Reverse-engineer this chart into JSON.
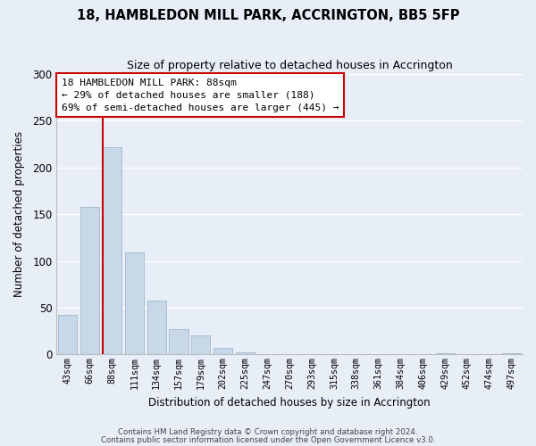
{
  "title": "18, HAMBLEDON MILL PARK, ACCRINGTON, BB5 5FP",
  "subtitle": "Size of property relative to detached houses in Accrington",
  "xlabel": "Distribution of detached houses by size in Accrington",
  "ylabel": "Number of detached properties",
  "bar_labels": [
    "43sqm",
    "66sqm",
    "88sqm",
    "111sqm",
    "134sqm",
    "157sqm",
    "179sqm",
    "202sqm",
    "225sqm",
    "247sqm",
    "270sqm",
    "293sqm",
    "315sqm",
    "338sqm",
    "361sqm",
    "384sqm",
    "406sqm",
    "429sqm",
    "452sqm",
    "474sqm",
    "497sqm"
  ],
  "bar_heights": [
    42,
    158,
    222,
    109,
    58,
    27,
    20,
    7,
    2,
    0,
    0,
    0,
    0,
    0,
    0,
    0,
    0,
    1,
    0,
    0,
    1
  ],
  "bar_color": "#c8d8e8",
  "bar_edge_color": "#a0b8cc",
  "vline_index": 2,
  "vline_color": "#cc0000",
  "ylim": [
    0,
    300
  ],
  "yticks": [
    0,
    50,
    100,
    150,
    200,
    250,
    300
  ],
  "annotation_title": "18 HAMBLEDON MILL PARK: 88sqm",
  "annotation_line1": "← 29% of detached houses are smaller (188)",
  "annotation_line2": "69% of semi-detached houses are larger (445) →",
  "footer1": "Contains HM Land Registry data © Crown copyright and database right 2024.",
  "footer2": "Contains public sector information licensed under the Open Government Licence v3.0.",
  "background_color": "#e8eef8",
  "plot_background": "#e8eef8",
  "grid_color": "#ffffff",
  "annotation_box_color": "#ffffff",
  "annotation_border_color": "#cc0000",
  "title_fontsize": 10.5,
  "subtitle_fontsize": 9
}
